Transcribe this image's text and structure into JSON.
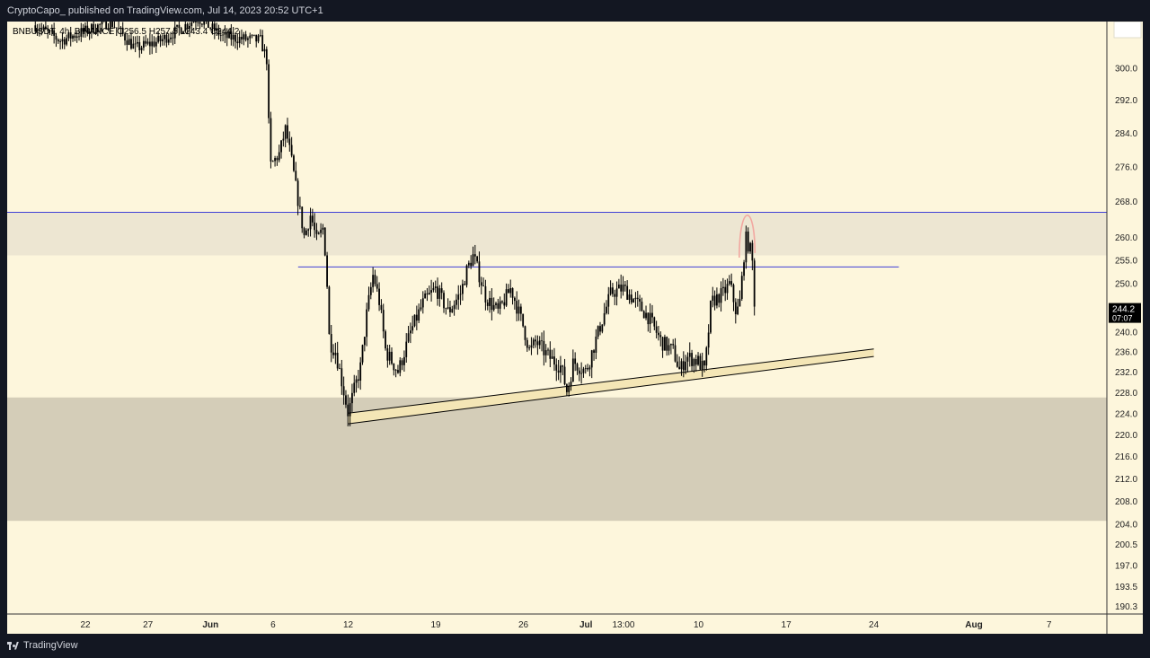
{
  "header": {
    "publish_line": "CryptoCapo_ published on TradingView.com, Jul 14, 2023 20:52 UTC+1"
  },
  "footer": {
    "brand": "TradingView"
  },
  "colors": {
    "page_bg": "#131722",
    "chart_bg": "#fdf6dc",
    "candle": "#000000",
    "resistance_zone": "#ede6d2",
    "support_zone": "#d4cdb8",
    "horizontal_line": "#3f3fd6",
    "channel_fill": "#f4e6b6",
    "arc": "#f2a7a0",
    "price_label_bg": "#000000"
  },
  "chart_data": {
    "type": "candlestick",
    "symbol_line": "BNBUSDT, 4h, BINANCE O256.5 H257.5 L243.4 C244.2",
    "y_scale": "log",
    "ylim": [
      189,
      312
    ],
    "yticks": [
      "300.0",
      "292.0",
      "284.0",
      "276.0",
      "268.0",
      "260.0",
      "255.0",
      "250.0",
      "240.0",
      "236.0",
      "232.0",
      "228.0",
      "224.0",
      "220.0",
      "216.0",
      "212.0",
      "208.0",
      "204.0",
      "200.5",
      "197.0",
      "193.5",
      "190.3"
    ],
    "xticks": [
      {
        "date": "2023-05-22",
        "label": "22",
        "bold": false
      },
      {
        "date": "2023-05-27",
        "label": "27",
        "bold": false
      },
      {
        "date": "2023-06-01",
        "label": "Jun",
        "bold": true
      },
      {
        "date": "2023-06-06",
        "label": "6",
        "bold": false
      },
      {
        "date": "2023-06-12",
        "label": "12",
        "bold": false
      },
      {
        "date": "2023-06-19",
        "label": "19",
        "bold": false
      },
      {
        "date": "2023-06-26",
        "label": "26",
        "bold": false
      },
      {
        "date": "2023-07-01",
        "label": "Jul",
        "bold": true
      },
      {
        "date": "2023-07-04",
        "label": "13:00",
        "bold": false
      },
      {
        "date": "2023-07-10",
        "label": "10",
        "bold": false
      },
      {
        "date": "2023-07-17",
        "label": "17",
        "bold": false
      },
      {
        "date": "2023-07-24",
        "label": "24",
        "bold": false
      },
      {
        "date": "2023-08-01",
        "label": "Aug",
        "bold": true
      },
      {
        "date": "2023-08-07",
        "label": "7",
        "bold": false
      }
    ],
    "last_price": {
      "value": 244.2,
      "label": "244.2",
      "countdown": "07:07"
    },
    "price_path": [
      [
        "2023-05-18",
        311
      ],
      [
        "2023-05-20",
        307
      ],
      [
        "2023-05-24",
        312
      ],
      [
        "2023-05-26",
        305
      ],
      [
        "2023-05-28",
        307
      ],
      [
        "2023-05-31",
        313
      ],
      [
        "2023-06-02",
        308
      ],
      [
        "2023-06-05",
        307
      ],
      [
        "2023-06-05T12:00",
        302
      ],
      [
        "2023-06-05T18:00",
        276
      ],
      [
        "2023-06-06T12:00",
        279
      ],
      [
        "2023-06-07",
        285
      ],
      [
        "2023-06-07T12:00",
        277
      ],
      [
        "2023-06-08",
        268
      ],
      [
        "2023-06-08T12:00",
        260
      ],
      [
        "2023-06-09",
        265
      ],
      [
        "2023-06-09T12:00",
        259
      ],
      [
        "2023-06-10",
        262
      ],
      [
        "2023-06-10T06:00",
        254
      ],
      [
        "2023-06-10T12:00",
        238
      ],
      [
        "2023-06-11",
        236
      ],
      [
        "2023-06-12",
        224
      ],
      [
        "2023-06-13",
        233
      ],
      [
        "2023-06-13T12:00",
        244
      ],
      [
        "2023-06-14",
        252
      ],
      [
        "2023-06-14T12:00",
        246
      ],
      [
        "2023-06-15",
        236
      ],
      [
        "2023-06-16",
        232
      ],
      [
        "2023-06-17",
        240
      ],
      [
        "2023-06-18",
        246
      ],
      [
        "2023-06-19",
        249
      ],
      [
        "2023-06-20",
        244
      ],
      [
        "2023-06-21",
        248
      ],
      [
        "2023-06-21T12:00",
        253
      ],
      [
        "2023-06-22",
        256
      ],
      [
        "2023-06-23",
        247
      ],
      [
        "2023-06-24",
        244
      ],
      [
        "2023-06-25",
        249
      ],
      [
        "2023-06-26",
        241
      ],
      [
        "2023-06-26T12:00",
        236
      ],
      [
        "2023-06-27",
        238
      ],
      [
        "2023-06-28",
        235
      ],
      [
        "2023-06-29",
        233
      ],
      [
        "2023-06-29T12:00",
        228
      ],
      [
        "2023-06-30",
        234
      ],
      [
        "2023-07-01",
        232
      ],
      [
        "2023-07-02",
        240
      ],
      [
        "2023-07-03",
        248
      ],
      [
        "2023-07-04",
        249
      ],
      [
        "2023-07-05",
        246
      ],
      [
        "2023-07-06",
        243
      ],
      [
        "2023-07-07",
        238
      ],
      [
        "2023-07-08",
        236
      ],
      [
        "2023-07-08T12:00",
        232
      ],
      [
        "2023-07-09",
        235
      ],
      [
        "2023-07-10",
        234
      ],
      [
        "2023-07-10T12:00",
        232
      ],
      [
        "2023-07-11",
        246
      ],
      [
        "2023-07-12",
        248
      ],
      [
        "2023-07-12T12:00",
        250
      ],
      [
        "2023-07-13",
        244
      ],
      [
        "2023-07-13T06:00",
        245
      ],
      [
        "2023-07-13T12:00",
        252
      ],
      [
        "2023-07-13T18:00",
        260
      ],
      [
        "2023-07-14",
        258
      ],
      [
        "2023-07-14T06:00",
        256.5
      ],
      [
        "2023-07-14T12:00",
        244.2
      ]
    ],
    "zones": [
      {
        "name": "resistance-zone",
        "from": 256,
        "to": 265.5
      },
      {
        "name": "support-zone",
        "from": 204.5,
        "to": 227
      }
    ],
    "horizontal_lines": [
      {
        "name": "upper-line",
        "price": 265.5,
        "start": "2023-05-15",
        "end": "2023-08-13"
      },
      {
        "name": "breakdown-line",
        "price": 253.5,
        "start": "2023-06-08",
        "end": "2023-07-26"
      }
    ],
    "trend_channel": {
      "upper": [
        [
          "2023-06-12",
          224
        ],
        [
          "2023-07-24",
          236.5
        ]
      ],
      "lower": [
        [
          "2023-06-12",
          222
        ],
        [
          "2023-07-24",
          235
        ]
      ]
    },
    "arc": {
      "start": [
        "2023-07-13T06:00",
        255.5
      ],
      "apex": [
        "2023-07-13T18:00",
        265
      ],
      "end": [
        "2023-07-14T12:00",
        256.5
      ]
    }
  }
}
